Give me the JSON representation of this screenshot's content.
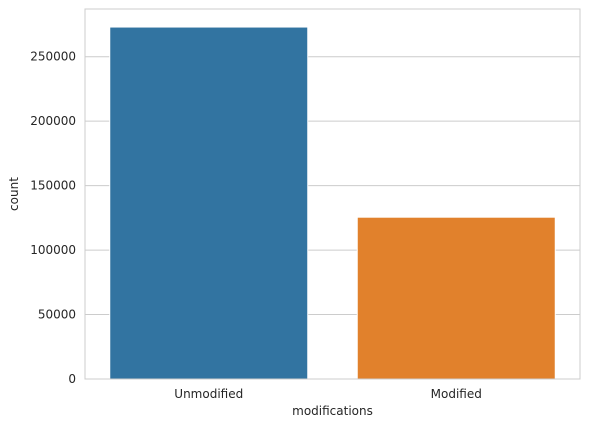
{
  "chart_data": {
    "type": "bar",
    "categories": [
      "Unmodified",
      "Modified"
    ],
    "values": [
      273000,
      125500
    ],
    "colors": [
      "#3274a1",
      "#e1812c"
    ],
    "xlabel": "modifications",
    "ylabel": "count",
    "ylim": [
      0,
      287000
    ],
    "yticks": [
      0,
      50000,
      100000,
      150000,
      200000,
      250000
    ],
    "grid": true,
    "grid_axis": "y",
    "legend": "none"
  }
}
